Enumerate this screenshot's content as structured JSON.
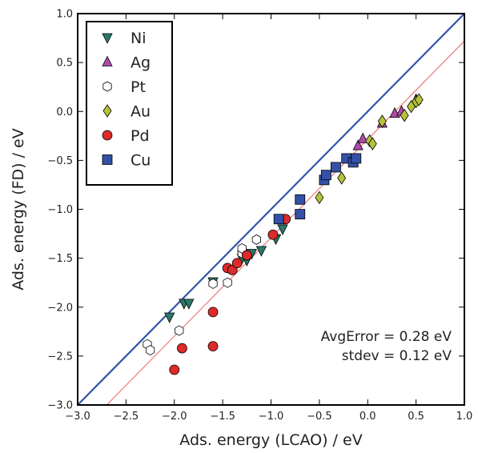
{
  "chart_data": {
    "type": "scatter",
    "xlabel": "Ads. energy (LCAO) / eV",
    "ylabel": "Ads. energy (FD) / eV",
    "xlim": [
      -3.0,
      1.0
    ],
    "ylim": [
      -3.0,
      1.0
    ],
    "xticks": [
      "−3.0",
      "−2.5",
      "−2.0",
      "−1.5",
      "−1.0",
      "−0.5",
      "0.0",
      "0.5",
      "1.0"
    ],
    "yticks": [
      "−3.0",
      "−2.5",
      "−2.0",
      "−1.5",
      "−1.0",
      "−0.5",
      "0.0",
      "0.5",
      "1.0"
    ],
    "grid": false,
    "legend_position": "top-left",
    "lines": [
      {
        "name": "y = x",
        "color": "#3355aa",
        "points": [
          [
            -3.0,
            -3.0
          ],
          [
            1.0,
            1.0
          ]
        ]
      },
      {
        "name": "fit",
        "color": "#ee7777",
        "points": [
          [
            -2.7,
            -3.0
          ],
          [
            1.0,
            0.72
          ]
        ]
      }
    ],
    "series": [
      {
        "name": "Ni",
        "marker": "triangle-down",
        "color": "#2a7a6a",
        "points": [
          [
            -2.05,
            -2.1
          ],
          [
            -1.9,
            -1.96
          ],
          [
            -1.85,
            -1.96
          ],
          [
            -1.6,
            -1.74
          ],
          [
            -1.3,
            -1.5
          ],
          [
            -1.25,
            -1.52
          ],
          [
            -1.2,
            -1.45
          ],
          [
            -1.1,
            -1.42
          ],
          [
            -0.95,
            -1.3
          ],
          [
            -0.88,
            -1.2
          ]
        ]
      },
      {
        "name": "Ag",
        "marker": "triangle-up",
        "color": "#b04aa8",
        "points": [
          [
            -0.1,
            -0.35
          ],
          [
            -0.05,
            -0.28
          ],
          [
            0.15,
            -0.12
          ],
          [
            0.28,
            -0.02
          ],
          [
            0.35,
            0.0
          ],
          [
            0.5,
            0.12
          ]
        ]
      },
      {
        "name": "Pt",
        "marker": "hexagon",
        "color": "#ffffff",
        "points": [
          [
            -2.28,
            -2.38
          ],
          [
            -2.25,
            -2.44
          ],
          [
            -1.95,
            -2.24
          ],
          [
            -1.6,
            -1.76
          ],
          [
            -1.45,
            -1.75
          ],
          [
            -1.3,
            -1.45
          ],
          [
            -1.3,
            -1.4
          ],
          [
            -1.15,
            -1.31
          ]
        ]
      },
      {
        "name": "Au",
        "marker": "diamond",
        "color": "#b6c23a",
        "points": [
          [
            -0.5,
            -0.88
          ],
          [
            -0.27,
            -0.68
          ],
          [
            0.02,
            -0.3
          ],
          [
            0.05,
            -0.33
          ],
          [
            0.15,
            -0.1
          ],
          [
            0.38,
            -0.04
          ],
          [
            0.45,
            0.05
          ],
          [
            0.5,
            0.1
          ],
          [
            0.53,
            0.12
          ]
        ]
      },
      {
        "name": "Pd",
        "marker": "circle",
        "color": "#dd2a2a",
        "points": [
          [
            -2.0,
            -2.64
          ],
          [
            -1.92,
            -2.42
          ],
          [
            -1.6,
            -2.05
          ],
          [
            -1.6,
            -2.4
          ],
          [
            -1.45,
            -1.6
          ],
          [
            -1.4,
            -1.62
          ],
          [
            -1.35,
            -1.55
          ],
          [
            -1.25,
            -1.47
          ],
          [
            -0.98,
            -1.26
          ],
          [
            -0.85,
            -1.1
          ]
        ]
      },
      {
        "name": "Cu",
        "marker": "square",
        "color": "#3450a8",
        "points": [
          [
            -0.92,
            -1.1
          ],
          [
            -0.7,
            -1.05
          ],
          [
            -0.7,
            -0.9
          ],
          [
            -0.45,
            -0.7
          ],
          [
            -0.43,
            -0.65
          ],
          [
            -0.33,
            -0.57
          ],
          [
            -0.22,
            -0.48
          ],
          [
            -0.15,
            -0.52
          ],
          [
            -0.12,
            -0.48
          ]
        ]
      }
    ],
    "annotations": [
      "AvgError = 0.28 eV",
      "stdev = 0.12 eV"
    ]
  }
}
